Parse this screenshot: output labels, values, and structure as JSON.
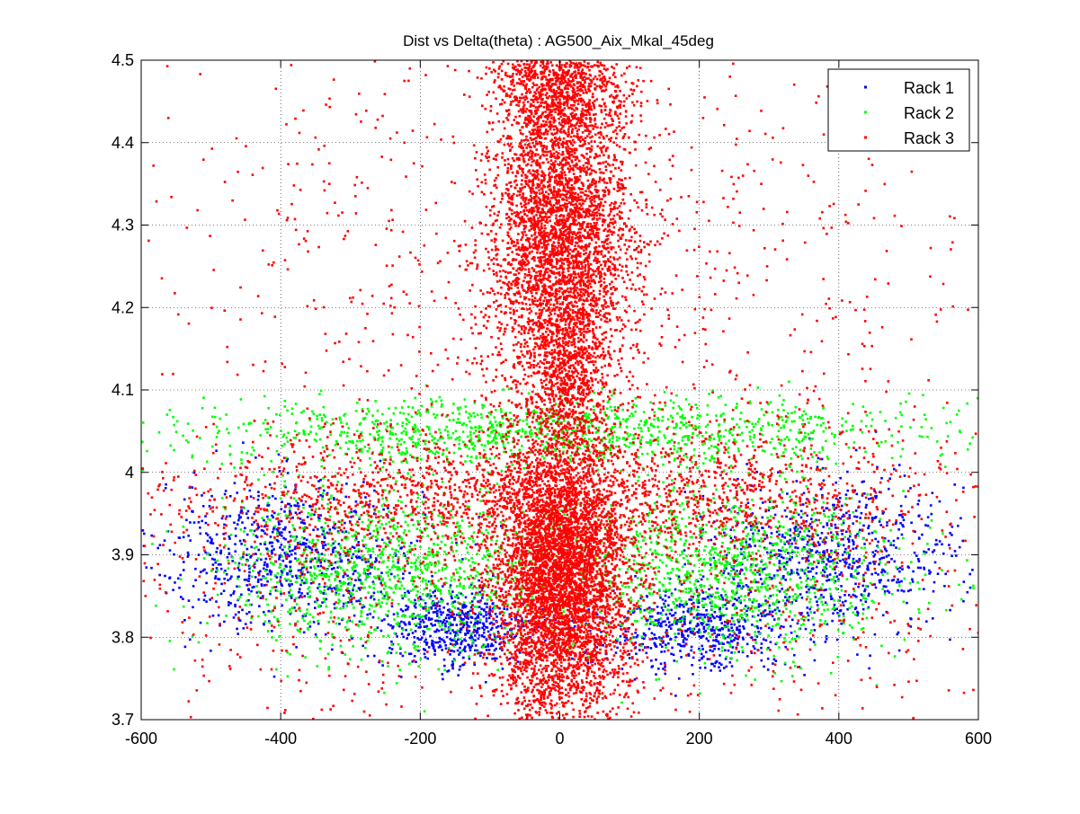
{
  "chart_data": {
    "type": "scatter",
    "title": "Dist vs Delta(theta) : AG500_Aix_Mkal_45deg",
    "xlabel": "",
    "ylabel": "",
    "xlim": [
      -600,
      600
    ],
    "ylim": [
      3.7,
      4.5
    ],
    "x_ticks": [
      -600,
      -400,
      -200,
      0,
      200,
      400,
      600
    ],
    "x_tick_labels": [
      "-600",
      "-400",
      "-200",
      "0",
      "200",
      "400",
      "600"
    ],
    "y_ticks": [
      3.7,
      3.8,
      3.9,
      4.0,
      4.1,
      4.2,
      4.3,
      4.4,
      4.5
    ],
    "y_tick_labels": [
      "3.7",
      "3.8",
      "3.9",
      "4",
      "4.1",
      "4.2",
      "4.3",
      "4.4",
      "4.5"
    ],
    "grid": true,
    "grid_style": "dotted",
    "legend_position": "top-right",
    "series": [
      {
        "name": "Rack 1",
        "color": "#0000ff",
        "marker": "dot",
        "clusters": [
          {
            "x_mean": -390,
            "x_std": 95,
            "y_mean": 3.9,
            "y_std": 0.045,
            "count": 750
          },
          {
            "x_mean": 390,
            "x_std": 95,
            "y_mean": 3.9,
            "y_std": 0.045,
            "count": 750
          },
          {
            "x_mean": -150,
            "x_std": 55,
            "y_mean": 3.81,
            "y_std": 0.025,
            "count": 550
          },
          {
            "x_mean": 200,
            "x_std": 70,
            "y_mean": 3.81,
            "y_std": 0.025,
            "count": 550
          }
        ]
      },
      {
        "name": "Rack 2",
        "color": "#00ff00",
        "marker": "dot",
        "clusters": [
          {
            "x_mean": 0,
            "x_std": 260,
            "y_mean": 4.05,
            "y_std": 0.02,
            "count": 1300
          },
          {
            "x_mean": -240,
            "x_std": 120,
            "y_mean": 3.88,
            "y_std": 0.05,
            "count": 1200
          },
          {
            "x_mean": 240,
            "x_std": 120,
            "y_mean": 3.88,
            "y_std": 0.05,
            "count": 1200
          }
        ]
      },
      {
        "name": "Rack 3",
        "color": "#ff0000",
        "marker": "dot",
        "clusters": [
          {
            "x_mean": 0,
            "x_std": 50,
            "y_mean": 3.87,
            "y_std": 0.09,
            "count": 5200
          },
          {
            "x_mean": 0,
            "x_std": 50,
            "y_mean": 4.28,
            "y_std": 0.1,
            "count": 3800
          },
          {
            "x_mean": 0,
            "x_std": 45,
            "y_mean": 4.47,
            "y_std": 0.035,
            "count": 1000
          },
          {
            "x_mean": 10,
            "x_std": 25,
            "y_mean": 4.1,
            "y_std": 0.045,
            "count": 500
          },
          {
            "x_mean": -220,
            "x_std": 160,
            "y_mean": 3.97,
            "y_std": 0.04,
            "count": 900
          },
          {
            "x_mean": 220,
            "x_std": 160,
            "y_mean": 3.97,
            "y_std": 0.04,
            "count": 900
          },
          {
            "x_mean": -200,
            "x_std": 230,
            "y_mean": 4.25,
            "y_std": 0.16,
            "count": 450
          },
          {
            "x_mean": 200,
            "x_std": 230,
            "y_mean": 4.25,
            "y_std": 0.16,
            "count": 450
          },
          {
            "x_mean": -330,
            "x_std": 150,
            "y_mean": 3.85,
            "y_std": 0.09,
            "count": 350
          },
          {
            "x_mean": 330,
            "x_std": 150,
            "y_mean": 3.85,
            "y_std": 0.09,
            "count": 350
          }
        ]
      }
    ]
  }
}
